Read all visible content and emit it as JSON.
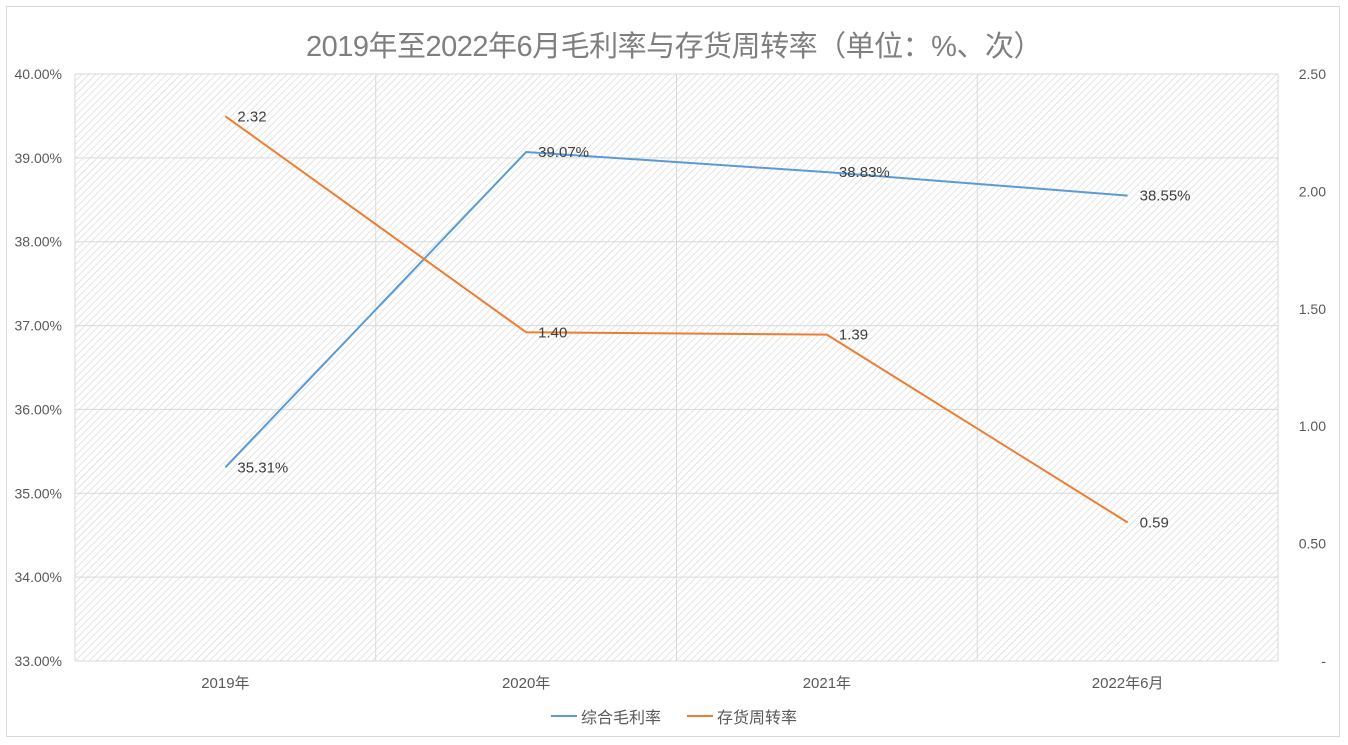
{
  "chart_data": {
    "type": "line",
    "title": "2019年至2022年6月毛利率与存货周转率（单位：%、次）",
    "categories": [
      "2019年",
      "2020年",
      "2021年",
      "2022年6月"
    ],
    "series": [
      {
        "name": "综合毛利率",
        "axis": "left",
        "values": [
          35.31,
          39.07,
          38.83,
          38.55
        ],
        "labels": [
          "35.31%",
          "39.07%",
          "38.83%",
          "38.55%"
        ],
        "color": "#5b9bd5"
      },
      {
        "name": "存货周转率",
        "axis": "right",
        "values": [
          2.32,
          1.4,
          1.39,
          0.59
        ],
        "labels": [
          "2.32",
          "1.40",
          "1.39",
          "0.59"
        ],
        "color": "#ed7d31"
      }
    ],
    "y_left": {
      "ylim": [
        33,
        40
      ],
      "ticks": [
        "33.00%",
        "34.00%",
        "35.00%",
        "36.00%",
        "37.00%",
        "38.00%",
        "39.00%",
        "40.00%"
      ]
    },
    "y_right": {
      "ylim": [
        0,
        2.5
      ],
      "ticks": [
        "-",
        "0.50",
        "1.00",
        "1.50",
        "2.00",
        "2.50"
      ]
    },
    "xlabel": "",
    "ylabel": "",
    "grid": true,
    "legend_position": "bottom"
  }
}
